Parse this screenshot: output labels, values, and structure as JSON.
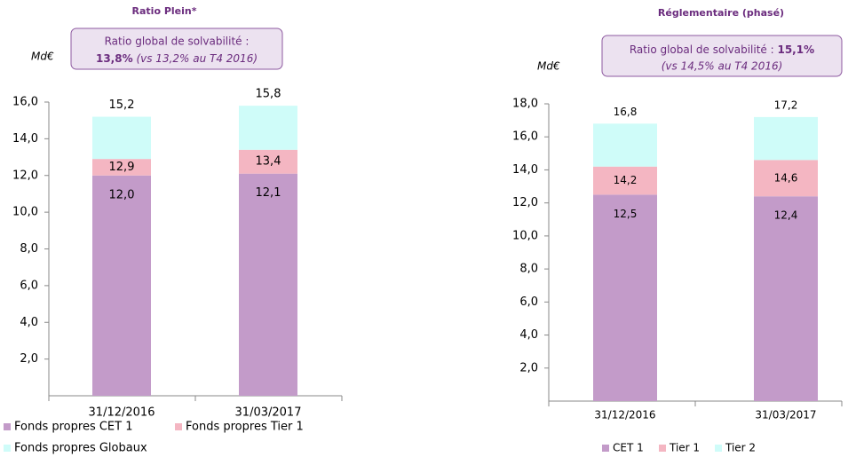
{
  "chart_data": [
    {
      "type": "stacked_bar",
      "title": "Ratio Plein*",
      "ylabel": "Md€",
      "annotation": {
        "line1": "Ratio global de solvabilité :",
        "bold": "13,8%",
        "italic": "(vs 13,2% au T4 2016)"
      },
      "categories": [
        "31/12/2016",
        "31/03/2017"
      ],
      "series": [
        {
          "name": "Fonds propres CET 1",
          "color": "#c39bc9",
          "values": [
            12.0,
            12.1
          ],
          "labels": [
            "12,0",
            "12,1"
          ]
        },
        {
          "name": "Fonds propres Tier 1",
          "color": "#f4b6c2",
          "values": [
            0.9,
            1.3
          ],
          "labels": [
            "12,9",
            "13,4"
          ]
        },
        {
          "name": "Fonds propres Globaux",
          "color": "#cffcf9",
          "values": [
            2.3,
            2.4
          ],
          "labels": [
            "15,2",
            "15,8"
          ]
        }
      ],
      "ylim": [
        0,
        16
      ],
      "yticks": [
        {
          "value": 2,
          "label": "2,0"
        },
        {
          "value": 4,
          "label": "4,0"
        },
        {
          "value": 6,
          "label": "6,0"
        },
        {
          "value": 8,
          "label": "8,0"
        },
        {
          "value": 10,
          "label": "10,0"
        },
        {
          "value": 12,
          "label": "12,0"
        },
        {
          "value": 14,
          "label": "14,0"
        },
        {
          "value": 16,
          "label": "16,0"
        }
      ]
    },
    {
      "type": "stacked_bar",
      "title": "Réglementaire (phasé)",
      "ylabel": "Md€",
      "annotation": {
        "line1": "Ratio global de solvabilité :",
        "bold": "15,1%",
        "italic": "(vs 14,5% au T4 2016)"
      },
      "categories": [
        "31/12/2016",
        "31/03/2017"
      ],
      "series": [
        {
          "name": "CET 1",
          "color": "#c39bc9",
          "values": [
            12.5,
            12.4
          ],
          "labels": [
            "12,5",
            "12,4"
          ]
        },
        {
          "name": "Tier 1",
          "color": "#f4b6c2",
          "values": [
            1.7,
            2.2
          ],
          "labels": [
            "14,2",
            "14,6"
          ]
        },
        {
          "name": "Tier 2",
          "color": "#cffcf9",
          "values": [
            2.6,
            2.6
          ],
          "labels": [
            "16,8",
            "17,2"
          ]
        }
      ],
      "ylim": [
        0,
        18
      ],
      "yticks": [
        {
          "value": 2,
          "label": "2,0"
        },
        {
          "value": 4,
          "label": "4,0"
        },
        {
          "value": 6,
          "label": "6,0"
        },
        {
          "value": 8,
          "label": "8,0"
        },
        {
          "value": 10,
          "label": "10,0"
        },
        {
          "value": 12,
          "label": "12,0"
        },
        {
          "value": 14,
          "label": "14,0"
        },
        {
          "value": 16,
          "label": "16,0"
        },
        {
          "value": 18,
          "label": "18,0"
        }
      ]
    }
  ]
}
